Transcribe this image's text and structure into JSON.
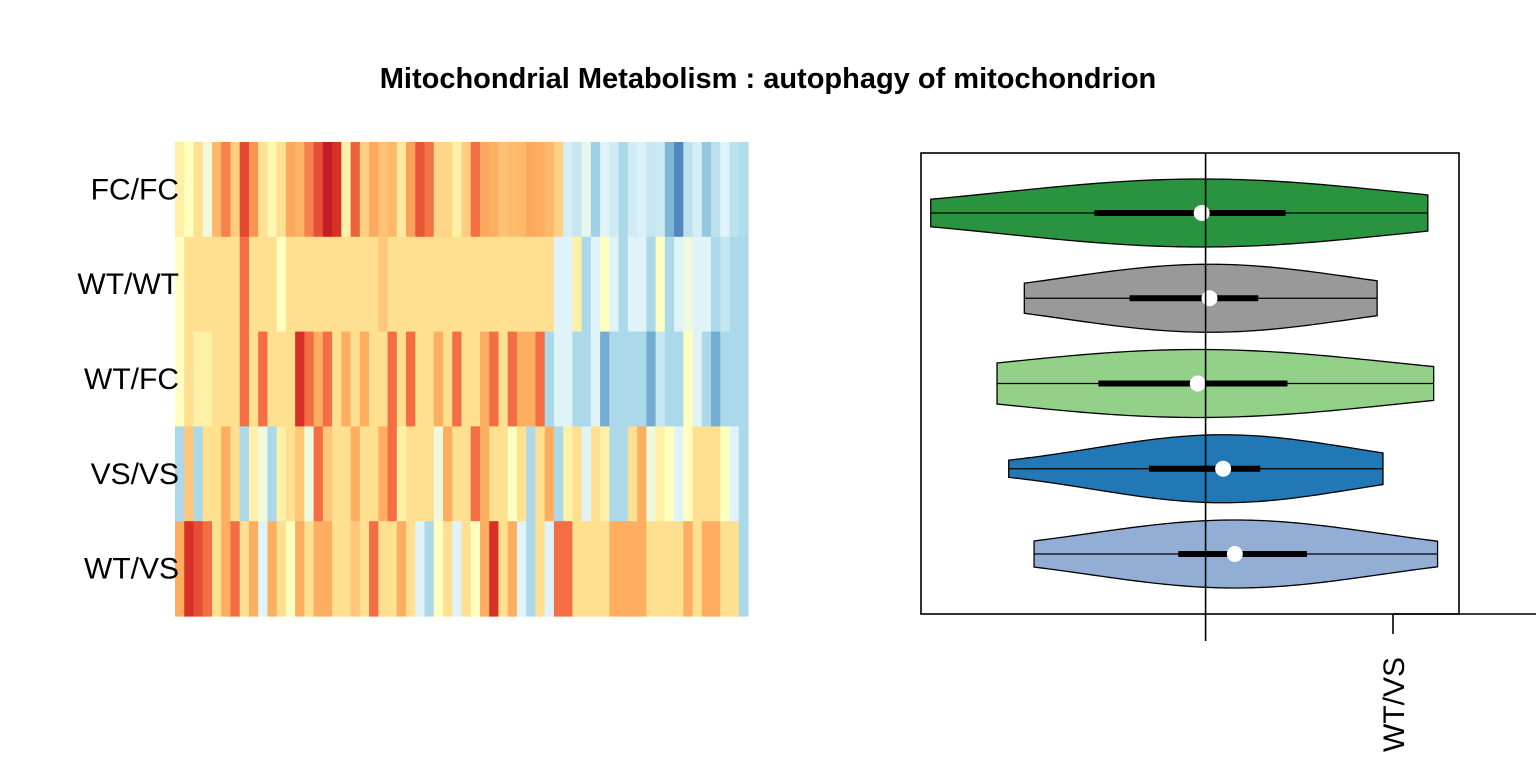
{
  "chart_data": [
    {
      "type": "heatmap",
      "title": "Mitochondrial Metabolism : autophagy of mitochondrion",
      "rows": [
        "FC/FC",
        "WT/WT",
        "WT/FC",
        "VS/VS",
        "WT/VS"
      ],
      "palette": [
        "#A50026",
        "#D73027",
        "#F46D43",
        "#FDAE61",
        "#FEE090",
        "#FFFFBF",
        "#E0F3F8",
        "#ABD9E9",
        "#74ADD1",
        "#4575B4",
        "#313695"
      ],
      "values": [
        [
          0.45,
          0.5,
          0.4,
          0.55,
          0.32,
          0.23,
          0.36,
          0.14,
          0.26,
          0.41,
          0.47,
          0.4,
          0.29,
          0.31,
          0.23,
          0.15,
          0.06,
          0.1,
          0.46,
          0.18,
          0.37,
          0.29,
          0.34,
          0.32,
          0.43,
          0.28,
          0.16,
          0.21,
          0.38,
          0.38,
          0.45,
          0.36,
          0.2,
          0.29,
          0.3,
          0.34,
          0.33,
          0.32,
          0.29,
          0.3,
          0.32,
          0.37,
          0.62,
          0.65,
          0.58,
          0.72,
          0.6,
          0.63,
          0.7,
          0.63,
          0.61,
          0.65,
          0.64,
          0.78,
          0.87,
          0.67,
          0.62,
          0.74,
          0.67,
          0.6,
          0.67,
          0.69
        ],
        [
          0.5,
          0.4,
          0.4,
          0.4,
          0.4,
          0.4,
          0.4,
          0.2,
          0.4,
          0.4,
          0.4,
          0.5,
          0.4,
          0.4,
          0.4,
          0.4,
          0.4,
          0.4,
          0.4,
          0.4,
          0.4,
          0.4,
          0.35,
          0.4,
          0.4,
          0.4,
          0.4,
          0.4,
          0.4,
          0.4,
          0.4,
          0.4,
          0.4,
          0.4,
          0.4,
          0.4,
          0.4,
          0.4,
          0.4,
          0.4,
          0.4,
          0.6,
          0.6,
          0.45,
          0.7,
          0.6,
          0.5,
          0.6,
          0.7,
          0.6,
          0.6,
          0.7,
          0.5,
          0.7,
          0.6,
          0.55,
          0.6,
          0.6,
          0.7,
          0.65,
          0.7,
          0.7
        ],
        [
          0.5,
          0.4,
          0.45,
          0.45,
          0.4,
          0.4,
          0.4,
          0.2,
          0.4,
          0.2,
          0.4,
          0.4,
          0.4,
          0.1,
          0.2,
          0.3,
          0.2,
          0.4,
          0.3,
          0.4,
          0.3,
          0.4,
          0.4,
          0.2,
          0.4,
          0.2,
          0.4,
          0.4,
          0.3,
          0.4,
          0.2,
          0.4,
          0.4,
          0.3,
          0.2,
          0.4,
          0.2,
          0.3,
          0.3,
          0.2,
          0.7,
          0.6,
          0.6,
          0.7,
          0.7,
          0.6,
          0.8,
          0.7,
          0.7,
          0.7,
          0.7,
          0.8,
          0.65,
          0.7,
          0.7,
          0.5,
          0.6,
          0.7,
          0.8,
          0.7,
          0.7,
          0.7
        ],
        [
          0.7,
          0.35,
          0.7,
          0.4,
          0.4,
          0.3,
          0.4,
          0.7,
          0.45,
          0.55,
          0.7,
          0.45,
          0.4,
          0.35,
          0.55,
          0.2,
          0.35,
          0.4,
          0.4,
          0.3,
          0.4,
          0.4,
          0.3,
          0.2,
          0.45,
          0.4,
          0.4,
          0.4,
          0.55,
          0.3,
          0.4,
          0.4,
          0.2,
          0.3,
          0.4,
          0.4,
          0.5,
          0.4,
          0.7,
          0.4,
          0.3,
          0.7,
          0.45,
          0.4,
          0.6,
          0.4,
          0.45,
          0.7,
          0.7,
          0.4,
          0.3,
          0.55,
          0.45,
          0.5,
          0.6,
          0.5,
          0.4,
          0.4,
          0.4,
          0.5,
          0.6,
          0.7
        ],
        [
          0.3,
          0.1,
          0.15,
          0.2,
          0.4,
          0.3,
          0.2,
          0.4,
          0.3,
          0.6,
          0.3,
          0.4,
          0.5,
          0.3,
          0.4,
          0.3,
          0.3,
          0.4,
          0.4,
          0.35,
          0.4,
          0.2,
          0.4,
          0.4,
          0.3,
          0.4,
          0.6,
          0.7,
          0.5,
          0.4,
          0.6,
          0.4,
          0.5,
          0.3,
          0.1,
          0.4,
          0.3,
          0.6,
          0.7,
          0.4,
          0.6,
          0.2,
          0.2,
          0.4,
          0.4,
          0.4,
          0.4,
          0.3,
          0.3,
          0.3,
          0.3,
          0.4,
          0.4,
          0.4,
          0.4,
          0.3,
          0.4,
          0.3,
          0.3,
          0.4,
          0.4,
          0.7
        ]
      ]
    },
    {
      "type": "violin",
      "groups": [
        {
          "label": "FC/FC",
          "color": "#2A9340",
          "min": -1.41,
          "q1": -0.57,
          "median": -0.02,
          "q3": 0.41,
          "max": 1.14
        },
        {
          "label": "WT/WT",
          "color": "#999999",
          "min": -0.93,
          "q1": -0.39,
          "median": 0.02,
          "q3": 0.27,
          "max": 0.88
        },
        {
          "label": "WT/FC",
          "color": "#92D187",
          "min": -1.07,
          "q1": -0.55,
          "median": -0.04,
          "q3": 0.42,
          "max": 1.17
        },
        {
          "label": "VS/VS",
          "color": "#2178B4",
          "min": -1.01,
          "q1": -0.29,
          "median": 0.09,
          "q3": 0.28,
          "max": 0.91
        },
        {
          "label": "WT/VS",
          "color": "#93AED5",
          "min": -0.88,
          "q1": -0.14,
          "median": 0.15,
          "q3": 0.52,
          "max": 1.19
        }
      ],
      "xlim": [
        -1.46,
        1.3
      ],
      "reference_line_x": 0,
      "x_tick_label": "WT/VS"
    }
  ]
}
